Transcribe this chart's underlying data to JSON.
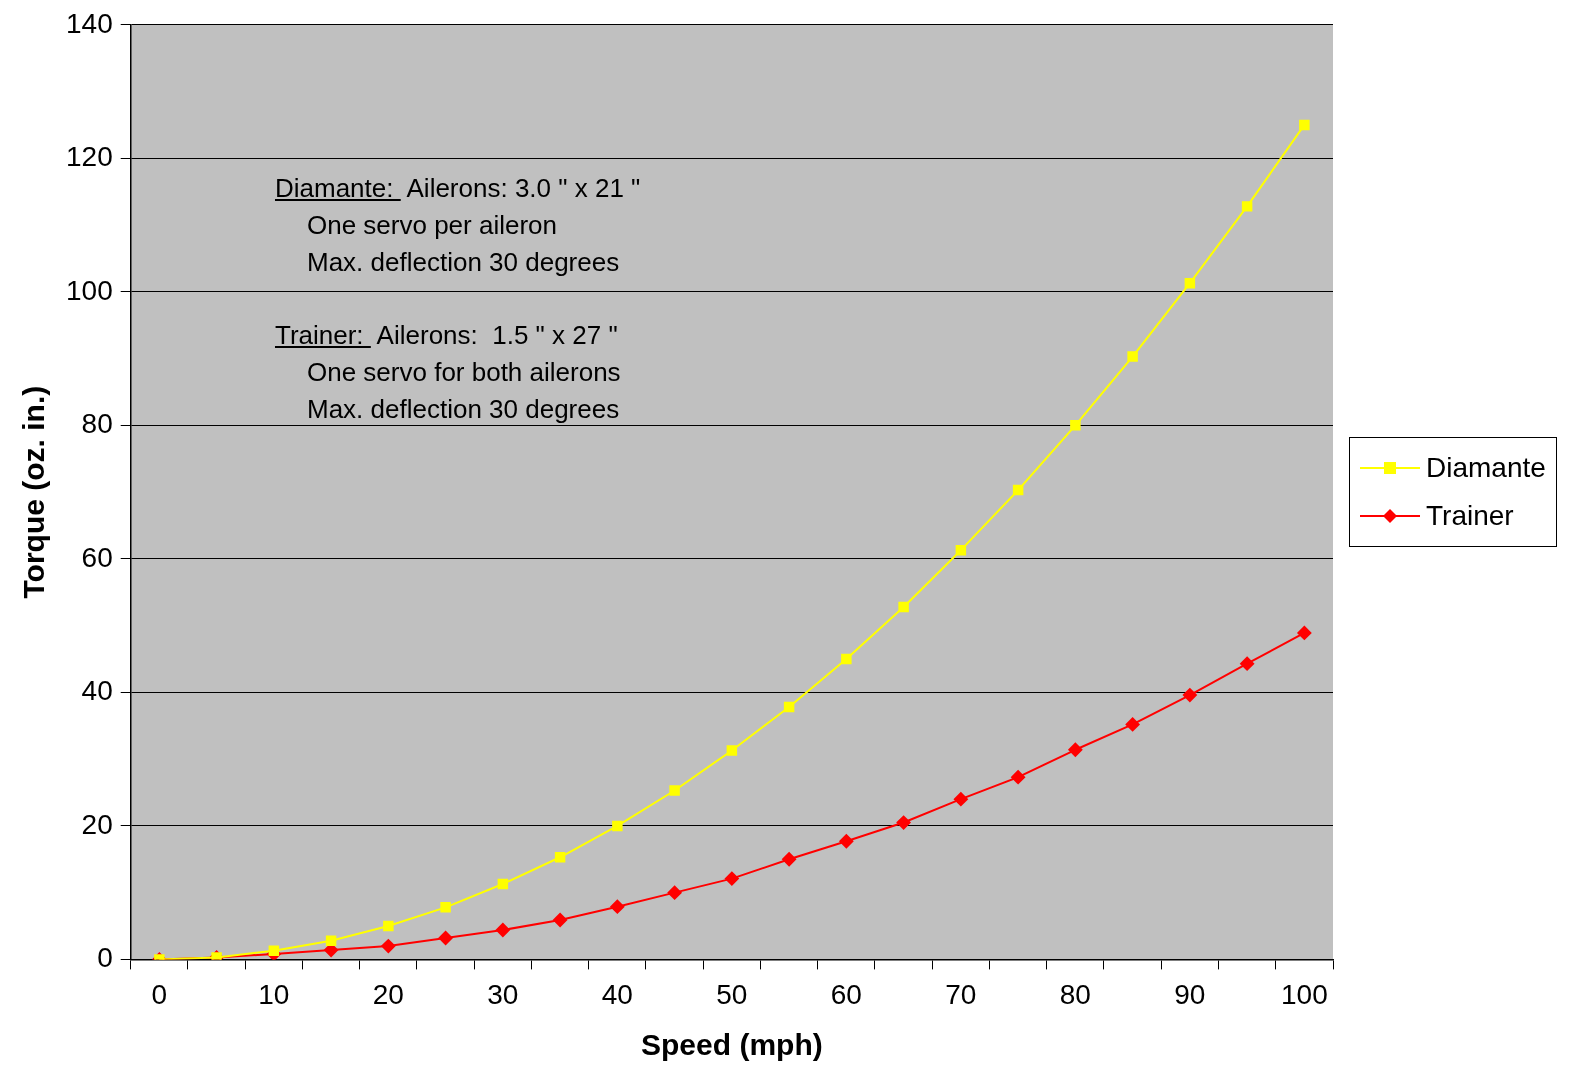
{
  "chart_data": {
    "type": "line",
    "xlabel": "Speed (mph)",
    "ylabel": "Torque (oz. in.)",
    "categories": [
      "0",
      null,
      "10",
      null,
      "20",
      null,
      "30",
      null,
      "40",
      null,
      "50",
      null,
      "60",
      null,
      "70",
      null,
      "80",
      null,
      "90",
      null,
      "100"
    ],
    "series": [
      {
        "name": "Diamante",
        "color": "#ffff00",
        "marker": "square",
        "values": [
          0,
          0.3,
          1.3,
          2.8,
          5,
          7.8,
          11.3,
          15.3,
          20,
          25.3,
          31.3,
          37.8,
          45,
          52.8,
          61.3,
          70.3,
          80,
          90.3,
          101.3,
          112.8,
          125
        ]
      },
      {
        "name": "Trainer",
        "color": "#ff0000",
        "marker": "diamond",
        "values": [
          0,
          0.3,
          0.8,
          1.4,
          2,
          3.2,
          4.4,
          5.9,
          7.9,
          10,
          12.1,
          15,
          17.7,
          20.5,
          24,
          27.3,
          31.4,
          35.2,
          39.6,
          44.3,
          48.9
        ]
      }
    ],
    "ylim": [
      0,
      140
    ],
    "yticks": [
      0,
      20,
      40,
      60,
      80,
      100,
      120,
      140
    ],
    "grid": "y",
    "legend": "right",
    "annotations": [
      "Diamante:  Ailerons: 3.0 \" x 21 \"\nOne servo per aileron\nMax. deflection 30 degrees",
      "Trainer:  Ailerons:  1.5 \" x 27 \"\nOne servo for both ailerons\nMax. deflection 30 degrees"
    ]
  }
}
